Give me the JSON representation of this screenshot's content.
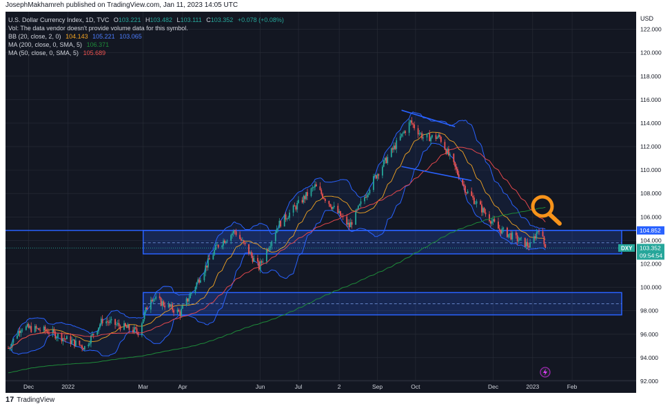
{
  "header": {
    "published": "JosephMakhamreh published on TradingView.com, Jan 11, 2023 14:05 UTC"
  },
  "footer": {
    "brand": "TradingView"
  },
  "legend": {
    "symbol": "U.S. Dollar Currency Index, 1D, TVC",
    "ohlc": [
      {
        "k": "O",
        "v": "103.221"
      },
      {
        "k": "H",
        "v": "103.482"
      },
      {
        "k": "L",
        "v": "103.111"
      },
      {
        "k": "C",
        "v": "103.352"
      }
    ],
    "change": "+0.078 (+0.08%)",
    "vol_note": "Vol: The data vendor doesn't provide volume data for this symbol.",
    "bb": {
      "label": "BB (20, close, 2, 0)",
      "v1": "104.143",
      "v2": "105.221",
      "v3": "103.065"
    },
    "ma200": {
      "label": "MA (200, close, 0, SMA, 5)",
      "v": "106.371"
    },
    "ma50": {
      "label": "MA (50, close, 0, SMA, 5)",
      "v": "105.689"
    }
  },
  "chart_data": {
    "type": "candlestick",
    "y_axis_unit": "USD",
    "ylim": [
      91,
      123.5
    ],
    "y_ticks": [
      "122.000",
      "120.000",
      "118.000",
      "116.000",
      "114.000",
      "112.000",
      "110.000",
      "108.000",
      "106.000",
      "104.000",
      "102.000",
      "100.000",
      "98.000",
      "96.000",
      "94.000",
      "92.000"
    ],
    "x_ticks": [
      "Dec",
      "2022",
      "Mar",
      "Apr",
      "Jun",
      "Jul",
      "2",
      "Sep",
      "Oct",
      "Dec",
      "2023",
      "Feb"
    ],
    "series": [
      {
        "name": "DXY",
        "description": "daily closes (approx.) Nov 2021 - Jan 2023",
        "close_waypoints": [
          {
            "t": "2021-11-15",
            "v": 94.8
          },
          {
            "t": "2021-11-25",
            "v": 96.6
          },
          {
            "t": "2021-12-15",
            "v": 96.3
          },
          {
            "t": "2022-01-14",
            "v": 94.9
          },
          {
            "t": "2022-01-28",
            "v": 97.2
          },
          {
            "t": "2022-02-25",
            "v": 96.2
          },
          {
            "t": "2022-03-07",
            "v": 99.2
          },
          {
            "t": "2022-03-30",
            "v": 97.8
          },
          {
            "t": "2022-04-28",
            "v": 103.5
          },
          {
            "t": "2022-05-12",
            "v": 104.8
          },
          {
            "t": "2022-05-31",
            "v": 101.7
          },
          {
            "t": "2022-06-15",
            "v": 105.3
          },
          {
            "t": "2022-07-14",
            "v": 108.6
          },
          {
            "t": "2022-08-10",
            "v": 105.2
          },
          {
            "t": "2022-08-29",
            "v": 109.2
          },
          {
            "t": "2022-09-27",
            "v": 114.1
          },
          {
            "t": "2022-10-07",
            "v": 112.8
          },
          {
            "t": "2022-10-20",
            "v": 112.8
          },
          {
            "t": "2022-11-10",
            "v": 108.2
          },
          {
            "t": "2022-12-05",
            "v": 105.0
          },
          {
            "t": "2022-12-30",
            "v": 103.5
          },
          {
            "t": "2023-01-06",
            "v": 105.1
          },
          {
            "t": "2023-01-11",
            "v": 103.352
          }
        ]
      },
      {
        "name": "MA (200, close, 0, SMA, 5)",
        "color": "#1e8c3a",
        "last": 106.371
      },
      {
        "name": "MA (50, close, 0, SMA, 5)",
        "color": "#e5484d",
        "last": 105.689
      },
      {
        "name": "BB (20, close, 2, 0)",
        "colors": {
          "basis": "#f5a623",
          "upper": "#2962ff",
          "lower": "#2962ff"
        },
        "last": [
          104.143,
          105.221,
          103.065
        ]
      }
    ],
    "zones": [
      {
        "name": "upper zone",
        "from": 102.85,
        "to": 104.85,
        "mid": 103.8,
        "start": "2022-03-01"
      },
      {
        "name": "lower zone",
        "from": 97.65,
        "to": 99.55,
        "mid": 98.6,
        "start": "2022-03-01"
      }
    ],
    "trendlines": [
      {
        "from": {
          "t": "2022-09-20",
          "v": 115.1
        },
        "to": {
          "t": "2022-11-01",
          "v": 113.7
        }
      },
      {
        "from": {
          "t": "2022-09-20",
          "v": 110.3
        },
        "to": {
          "t": "2022-11-14",
          "v": 109.1
        }
      }
    ],
    "horizontal_line": {
      "value": 104.852
    },
    "price_labels": [
      {
        "text": "104.852",
        "value": 104.852,
        "color": "#2962ff"
      },
      {
        "symbol": "DXY",
        "text": "103.352",
        "countdown": "09:54:54",
        "value": 103.352,
        "color": "#26a69a"
      }
    ],
    "annotation": {
      "type": "magnifier",
      "color": "#f7931a"
    },
    "colors": {
      "up": "#26a69a",
      "down": "#ef5350",
      "background": "#131722",
      "grid": "#2a2e39"
    },
    "grid": true,
    "legend_position": "top-left"
  }
}
